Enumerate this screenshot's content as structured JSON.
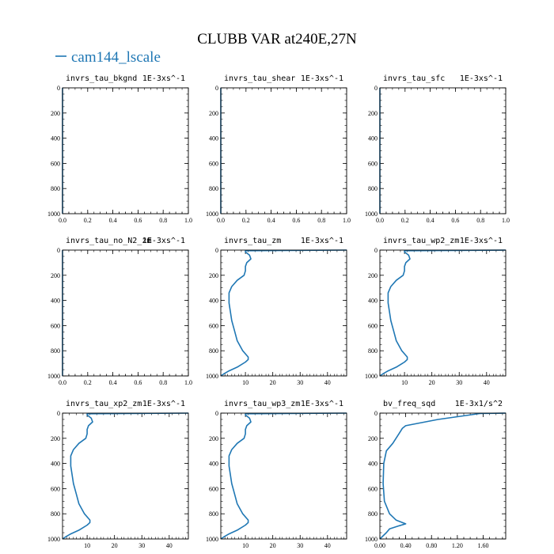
{
  "figure_title": "CLUBB VAR at240E,27N",
  "legend": {
    "label": "cam144_lscale",
    "color": "#1f77b4",
    "position": "top-left"
  },
  "chart_data": [
    {
      "type": "line",
      "title": "invrs_tau_bkgnd",
      "units": "1E-3xs^-1",
      "xlim": [
        0,
        1
      ],
      "ylim": [
        1000,
        0
      ],
      "x_ticks": [
        "0.0",
        "0.2",
        "0.4",
        "0.6",
        "0.8",
        "1.0"
      ],
      "x_tick_values": [
        0,
        0.2,
        0.4,
        0.6,
        0.8,
        1.0
      ],
      "y_ticks": [
        "0",
        "200",
        "400",
        "600",
        "800",
        "1000"
      ],
      "y_tick_values": [
        0,
        200,
        400,
        600,
        800,
        1000
      ],
      "series": [
        {
          "name": "cam144_lscale",
          "x": [
            0,
            0
          ],
          "y": [
            0,
            1000
          ]
        }
      ]
    },
    {
      "type": "line",
      "title": "invrs_tau_shear",
      "units": "1E-3xs^-1",
      "xlim": [
        0,
        1
      ],
      "ylim": [
        1000,
        0
      ],
      "x_ticks": [
        "0.0",
        "0.2",
        "0.4",
        "0.6",
        "0.8",
        "1.0"
      ],
      "x_tick_values": [
        0,
        0.2,
        0.4,
        0.6,
        0.8,
        1.0
      ],
      "y_ticks": [
        "0",
        "200",
        "400",
        "600",
        "800",
        "1000"
      ],
      "y_tick_values": [
        0,
        200,
        400,
        600,
        800,
        1000
      ],
      "series": [
        {
          "name": "cam144_lscale",
          "x": [
            0,
            0
          ],
          "y": [
            0,
            1000
          ]
        }
      ]
    },
    {
      "type": "line",
      "title": "invrs_tau_sfc",
      "units": "1E-3xs^-1",
      "xlim": [
        0,
        1
      ],
      "ylim": [
        1000,
        0
      ],
      "x_ticks": [
        "0.0",
        "0.2",
        "0.4",
        "0.6",
        "0.8",
        "1.0"
      ],
      "x_tick_values": [
        0,
        0.2,
        0.4,
        0.6,
        0.8,
        1.0
      ],
      "y_ticks": [
        "0",
        "200",
        "400",
        "600",
        "800",
        "1000"
      ],
      "y_tick_values": [
        0,
        200,
        400,
        600,
        800,
        1000
      ],
      "series": [
        {
          "name": "cam144_lscale",
          "x": [
            0,
            0
          ],
          "y": [
            0,
            1000
          ]
        }
      ]
    },
    {
      "type": "line",
      "title": "invrs_tau_no_N2_zm",
      "units": "1E-3xs^-1",
      "xlim": [
        0,
        1
      ],
      "ylim": [
        1000,
        0
      ],
      "x_ticks": [
        "0.0",
        "0.2",
        "0.4",
        "0.6",
        "0.8",
        "1.0"
      ],
      "x_tick_values": [
        0,
        0.2,
        0.4,
        0.6,
        0.8,
        1.0
      ],
      "y_ticks": [
        "0",
        "200",
        "400",
        "600",
        "800",
        "1000"
      ],
      "y_tick_values": [
        0,
        200,
        400,
        600,
        800,
        1000
      ],
      "series": [
        {
          "name": "cam144_lscale",
          "x": [
            0,
            0
          ],
          "y": [
            0,
            1000
          ]
        }
      ]
    },
    {
      "type": "line",
      "title": "invrs_tau_zm",
      "units": "1E-3xs^-1",
      "xlim": [
        1,
        47
      ],
      "ylim": [
        1000,
        0
      ],
      "x_ticks": [
        "10",
        "20",
        "30",
        "40"
      ],
      "x_tick_values": [
        10,
        20,
        30,
        40
      ],
      "y_ticks": [
        "0",
        "200",
        "400",
        "600",
        "800",
        "1000"
      ],
      "y_tick_values": [
        0,
        200,
        400,
        600,
        800,
        1000
      ],
      "series": [
        {
          "name": "cam144_lscale",
          "x": [
            47,
            10,
            10,
            11.5,
            12,
            10.5,
            10,
            10,
            9.5,
            7,
            5,
            4,
            4,
            5,
            6,
            7,
            9,
            11,
            11,
            10,
            7,
            4,
            2,
            1
          ],
          "y": [
            0,
            5,
            15,
            40,
            70,
            100,
            130,
            165,
            200,
            240,
            290,
            340,
            420,
            560,
            640,
            720,
            800,
            850,
            870,
            890,
            930,
            960,
            985,
            1000
          ]
        }
      ]
    },
    {
      "type": "line",
      "title": "invrs_tau_wp2_zm",
      "units": "1E-3xs^-1",
      "xlim": [
        1,
        47
      ],
      "ylim": [
        1000,
        0
      ],
      "x_ticks": [
        "10",
        "20",
        "30",
        "40"
      ],
      "x_tick_values": [
        10,
        20,
        30,
        40
      ],
      "y_ticks": [
        "0",
        "200",
        "400",
        "600",
        "800",
        "1000"
      ],
      "y_tick_values": [
        0,
        200,
        400,
        600,
        800,
        1000
      ],
      "series": [
        {
          "name": "cam144_lscale",
          "x": [
            47,
            10,
            10,
            11.5,
            12,
            10.5,
            10,
            10,
            9.5,
            7,
            5,
            4,
            4,
            5,
            6,
            7,
            9,
            11,
            11,
            10,
            7,
            4,
            2,
            1
          ],
          "y": [
            0,
            5,
            15,
            40,
            70,
            100,
            130,
            165,
            200,
            240,
            290,
            340,
            420,
            560,
            640,
            720,
            800,
            850,
            870,
            890,
            930,
            960,
            985,
            1000
          ]
        }
      ]
    },
    {
      "type": "line",
      "title": "invrs_tau_xp2_zm",
      "units": "1E-3xs^-1",
      "xlim": [
        1,
        47
      ],
      "ylim": [
        1000,
        0
      ],
      "x_ticks": [
        "10",
        "20",
        "30",
        "40"
      ],
      "x_tick_values": [
        10,
        20,
        30,
        40
      ],
      "y_ticks": [
        "0",
        "200",
        "400",
        "600",
        "800",
        "1000"
      ],
      "y_tick_values": [
        0,
        200,
        400,
        600,
        800,
        1000
      ],
      "series": [
        {
          "name": "cam144_lscale",
          "x": [
            47,
            10,
            10,
            11.5,
            12,
            10.5,
            10,
            10,
            9.5,
            7,
            5,
            4,
            4,
            5,
            6,
            7,
            9,
            11,
            11,
            10,
            7,
            4,
            2,
            1
          ],
          "y": [
            0,
            5,
            15,
            40,
            70,
            100,
            130,
            165,
            200,
            240,
            290,
            340,
            420,
            560,
            640,
            720,
            800,
            850,
            870,
            890,
            930,
            960,
            985,
            1000
          ]
        }
      ]
    },
    {
      "type": "line",
      "title": "invrs_tau_wp3_zm",
      "units": "1E-3xs^-1",
      "xlim": [
        1,
        47
      ],
      "ylim": [
        1000,
        0
      ],
      "x_ticks": [
        "10",
        "20",
        "30",
        "40"
      ],
      "x_tick_values": [
        10,
        20,
        30,
        40
      ],
      "y_ticks": [
        "0",
        "200",
        "400",
        "600",
        "800",
        "1000"
      ],
      "y_tick_values": [
        0,
        200,
        400,
        600,
        800,
        1000
      ],
      "series": [
        {
          "name": "cam144_lscale",
          "x": [
            47,
            10,
            10,
            11.5,
            12,
            10.5,
            10,
            10,
            9.5,
            7,
            5,
            4,
            4,
            5,
            6,
            7,
            9,
            11,
            11,
            10,
            7,
            4,
            2,
            1
          ],
          "y": [
            0,
            5,
            15,
            40,
            70,
            100,
            130,
            165,
            200,
            240,
            290,
            340,
            420,
            560,
            640,
            720,
            800,
            850,
            870,
            890,
            930,
            960,
            985,
            1000
          ]
        }
      ]
    },
    {
      "type": "line",
      "title": "bv_freq_sqd",
      "units": "1E-3x1/s^2",
      "xlim": [
        0,
        1.95
      ],
      "ylim": [
        1000,
        0
      ],
      "x_ticks": [
        "0.00",
        "0.40",
        "0.80",
        "1.20",
        "1.60"
      ],
      "x_tick_values": [
        0,
        0.4,
        0.8,
        1.2,
        1.6
      ],
      "y_ticks": [
        "0",
        "200",
        "400",
        "600",
        "800",
        "1000"
      ],
      "y_tick_values": [
        0,
        200,
        400,
        600,
        800,
        1000
      ],
      "series": [
        {
          "name": "cam144_lscale",
          "x": [
            1.95,
            1.55,
            0.9,
            0.4,
            0.35,
            0.3,
            0.25,
            0.2,
            0.1,
            0.06,
            0.05,
            0.07,
            0.15,
            0.25,
            0.4,
            0.3,
            0.15,
            0.1,
            0.05,
            0.02,
            0
          ],
          "y": [
            0,
            3,
            50,
            100,
            120,
            160,
            200,
            240,
            300,
            400,
            560,
            700,
            800,
            850,
            880,
            895,
            920,
            950,
            975,
            990,
            1000
          ]
        }
      ]
    }
  ]
}
